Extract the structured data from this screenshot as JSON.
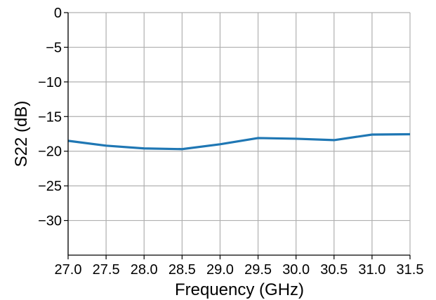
{
  "chart_data": {
    "type": "line",
    "title": "",
    "xlabel": "Frequency (GHz)",
    "ylabel": "S22 (dB)",
    "xlim": [
      27.0,
      31.5
    ],
    "ylim": [
      -35,
      0
    ],
    "xticks": [
      27.0,
      27.5,
      28.0,
      28.5,
      29.0,
      29.5,
      30.0,
      30.5,
      31.0,
      31.5
    ],
    "xtick_labels": [
      "27.0",
      "27.5",
      "28.0",
      "28.5",
      "29.0",
      "29.5",
      "30.0",
      "30.5",
      "31.0",
      "31.5"
    ],
    "yticks": [
      0,
      -5,
      -10,
      -15,
      -20,
      -25,
      -30
    ],
    "ytick_labels": [
      "0",
      "−5",
      "−10",
      "−15",
      "−20",
      "−25",
      "−30"
    ],
    "grid": true,
    "legend": "none",
    "series": [
      {
        "color": "#1f77b4",
        "x": [
          27.0,
          27.5,
          28.0,
          28.5,
          29.0,
          29.5,
          30.0,
          30.5,
          31.0,
          31.5
        ],
        "y": [
          -18.5,
          -19.2,
          -19.6,
          -19.7,
          -19.0,
          -18.1,
          -18.2,
          -18.4,
          -17.6,
          -17.55
        ]
      }
    ]
  }
}
